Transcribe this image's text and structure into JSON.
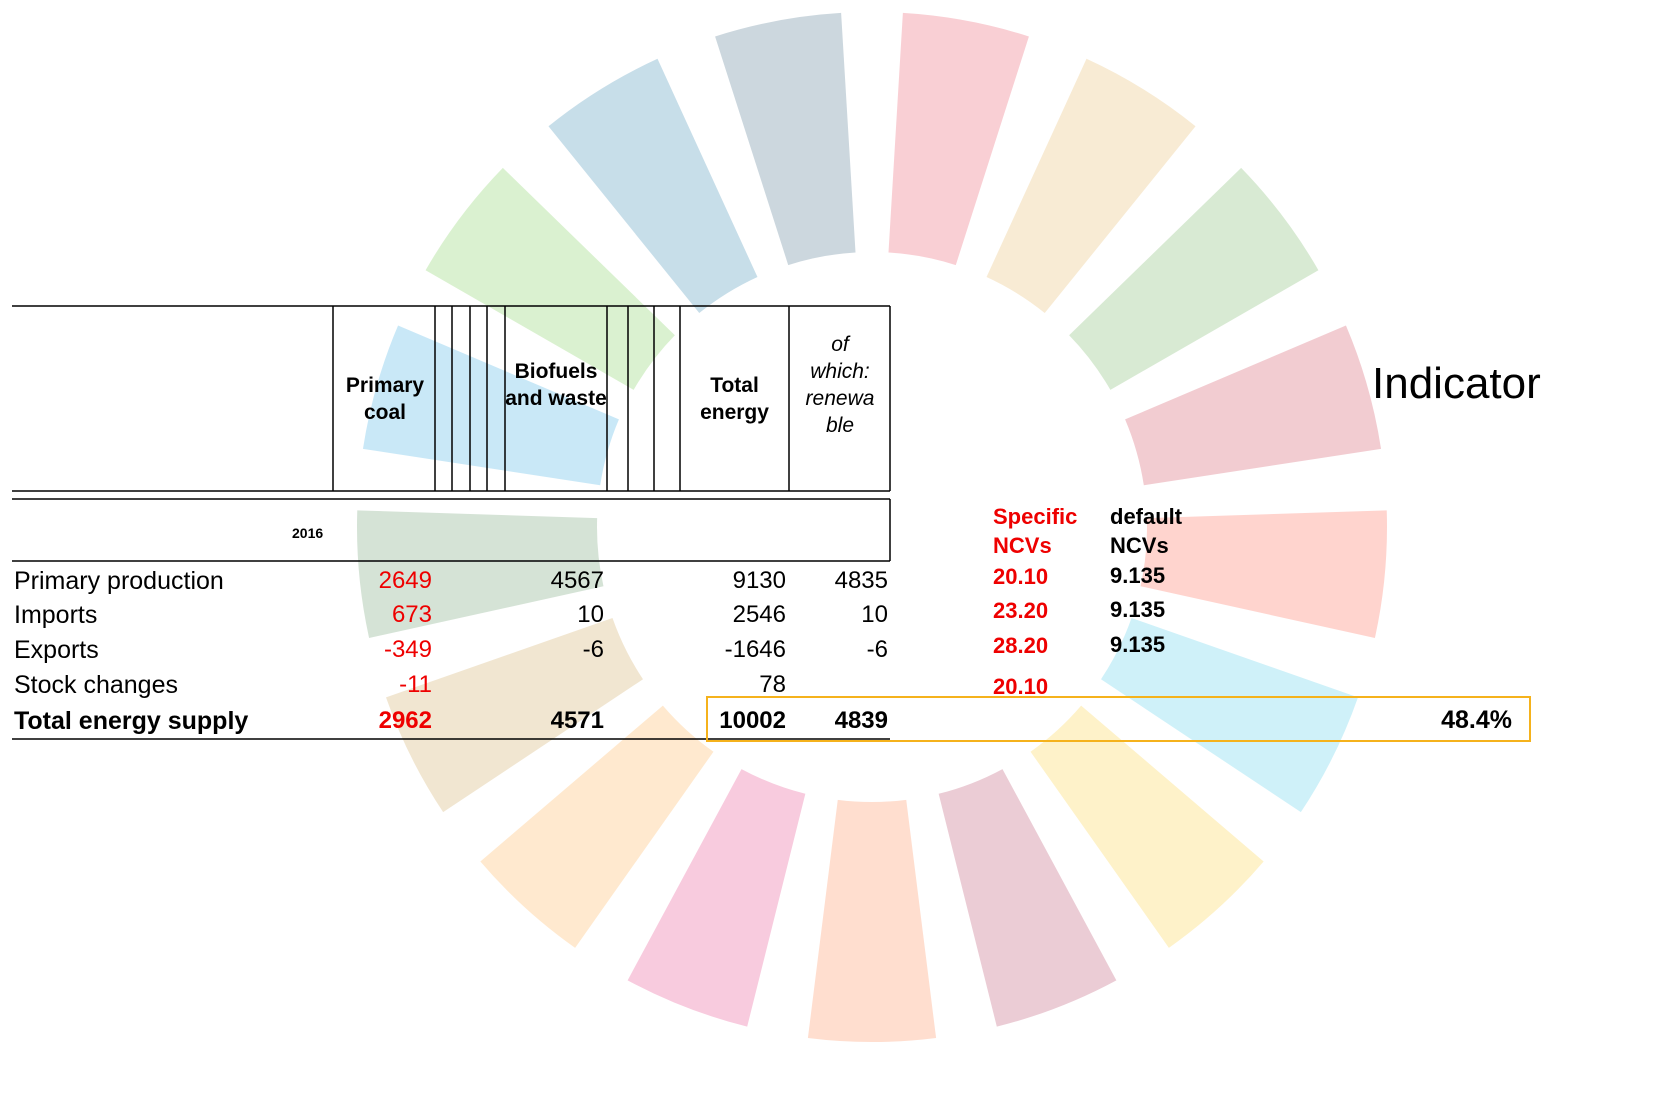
{
  "table": {
    "columns": [
      "Primary coal",
      "Biofuels and waste",
      "Total energy",
      "of which: renewable"
    ],
    "year": "2016",
    "rows": [
      {
        "label": "Primary production",
        "values": [
          2649,
          4567,
          9130,
          4835
        ]
      },
      {
        "label": "Imports",
        "values": [
          673,
          10,
          2546,
          10
        ]
      },
      {
        "label": "Exports",
        "values": [
          -349,
          -6,
          -1646,
          -6
        ]
      },
      {
        "label": "Stock changes",
        "values": [
          -11,
          null,
          78,
          null
        ]
      },
      {
        "label": "Total energy supply",
        "values": [
          2962,
          4571,
          10002,
          4839
        ]
      }
    ]
  },
  "ncv": {
    "specific_header": "Specific NCVs",
    "default_header": "default NCVs",
    "specific": [
      "20.10",
      "23.20",
      "28.20",
      "20.10"
    ],
    "default": [
      "9.135",
      "9.135",
      "9.135"
    ]
  },
  "indicator": {
    "title": "Indicator",
    "result": "48.4%"
  }
}
